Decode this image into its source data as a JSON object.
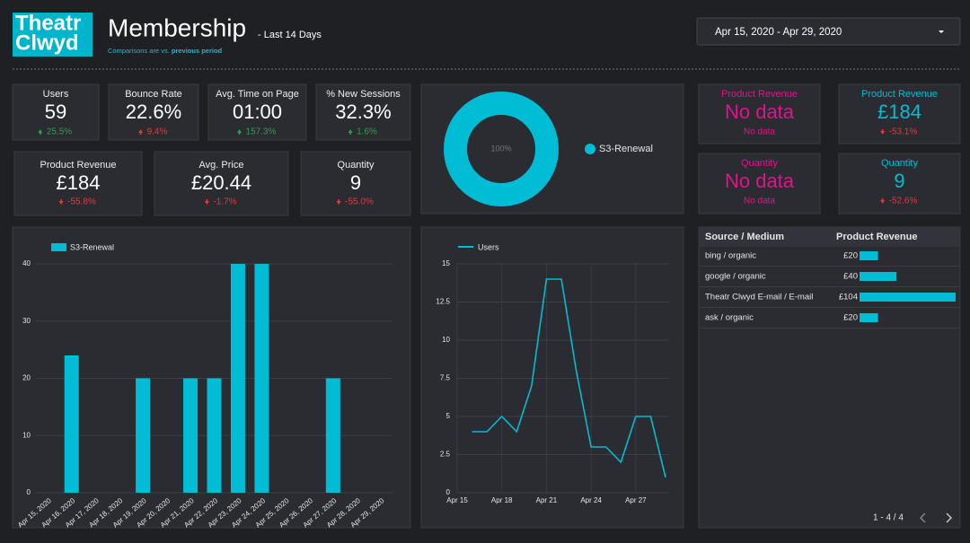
{
  "header": {
    "logo": [
      "Theatr",
      "Clwyd"
    ],
    "title": "Membership",
    "subtitle": "- Last 14 Days",
    "note": "Comparisons are vs.",
    "note_emph": "previous period",
    "date_range": "Apr 15, 2020 - Apr 29, 2020"
  },
  "scorecards": [
    {
      "label": "Users",
      "value": "59",
      "change": "25.5%",
      "trend": "up",
      "change_color": "#2e9e4f"
    },
    {
      "label": "Bounce Rate",
      "value": "22.6%",
      "change": "9.4%",
      "trend": "up",
      "change_color": "#e53935"
    },
    {
      "label": "Avg. Time on Page",
      "value": "01:00",
      "change": "157.3%",
      "trend": "up",
      "change_color": "#2e9e4f"
    },
    {
      "label": "% New Sessions",
      "value": "32.3%",
      "change": "1.6%",
      "trend": "up",
      "change_color": "#2e9e4f"
    },
    {
      "label": "Product Revenue",
      "value": "£184",
      "change": "-55.8%",
      "trend": "down",
      "change_color": "#e53935"
    },
    {
      "label": "Avg. Price",
      "value": "£20.44",
      "change": "-1.7%",
      "trend": "down",
      "change_color": "#e53935"
    },
    {
      "label": "Quantity",
      "value": "9",
      "change": "-55.0%",
      "trend": "down",
      "change_color": "#e53935"
    },
    {
      "label": "Product Revenue",
      "value": "No data",
      "change": "No data",
      "color": "#e0138c",
      "change_color": "#e0138c"
    },
    {
      "label": "Product Revenue",
      "value": "£184",
      "change": "-53.1%",
      "trend": "down",
      "color": "#00bcd4",
      "change_color": "#e53935"
    },
    {
      "label": "Quantity",
      "value": "No data",
      "change": "No data",
      "color": "#e0138c",
      "change_color": "#e0138c"
    },
    {
      "label": "Quantity",
      "value": "9",
      "change": "-52.6%",
      "trend": "down",
      "color": "#00bcd4",
      "change_color": "#e53935"
    }
  ],
  "chart_data": [
    {
      "type": "pie",
      "categories": [
        "S3-Renewal"
      ],
      "values": [
        100
      ],
      "value_labels": [
        "100%"
      ],
      "colors": [
        "#00bcd4"
      ],
      "legend": "right"
    },
    {
      "type": "bar",
      "categories": [
        "Apr 15, 2020",
        "Apr 16, 2020",
        "Apr 17, 2020",
        "Apr 18, 2020",
        "Apr 19, 2020",
        "Apr 20, 2020",
        "Apr 21, 2020",
        "Apr 22, 2020",
        "Apr 23, 2020",
        "Apr 24, 2020",
        "Apr 25, 2020",
        "Apr 26, 2020",
        "Apr 27, 2020",
        "Apr 28, 2020",
        "Apr 29, 2020"
      ],
      "series": [
        {
          "name": "S3-Renewal",
          "color": "#00bcd4",
          "values": [
            0,
            24,
            0,
            0,
            20,
            0,
            20,
            20,
            40,
            40,
            0,
            0,
            20,
            0,
            0
          ]
        }
      ],
      "ylim": [
        0,
        40
      ],
      "yticks": [
        0,
        10,
        20,
        30,
        40
      ],
      "grid": true,
      "legend": "top-left"
    },
    {
      "type": "line",
      "categories": [
        "Apr 15",
        null,
        null,
        "Apr 18",
        null,
        null,
        "Apr 21",
        null,
        null,
        "Apr 24",
        null,
        null,
        "Apr 27",
        null,
        null
      ],
      "series": [
        {
          "name": "Users",
          "color": "#00bcd4",
          "values": [
            null,
            4,
            4,
            5,
            4,
            7,
            14,
            14,
            8,
            3,
            3,
            2,
            5,
            5,
            1
          ]
        }
      ],
      "ylim": [
        0,
        15
      ],
      "yticks": [
        0,
        2.5,
        5,
        7.5,
        10,
        12.5,
        15
      ],
      "grid": true,
      "legend": "top-left"
    }
  ],
  "table": {
    "columns": [
      "Source / Medium",
      "Product Revenue"
    ],
    "rows": [
      {
        "source": "bing / organic",
        "value": 20,
        "label": "£20"
      },
      {
        "source": "google / organic",
        "value": 40,
        "label": "£40"
      },
      {
        "source": "Theatr Clwyd E-mail / E-mail",
        "value": 104,
        "label": "£104"
      },
      {
        "source": "ask / organic",
        "value": 20,
        "label": "£20"
      }
    ],
    "bar_color": "#00bcd4",
    "pagination": "1 - 4 / 4"
  }
}
